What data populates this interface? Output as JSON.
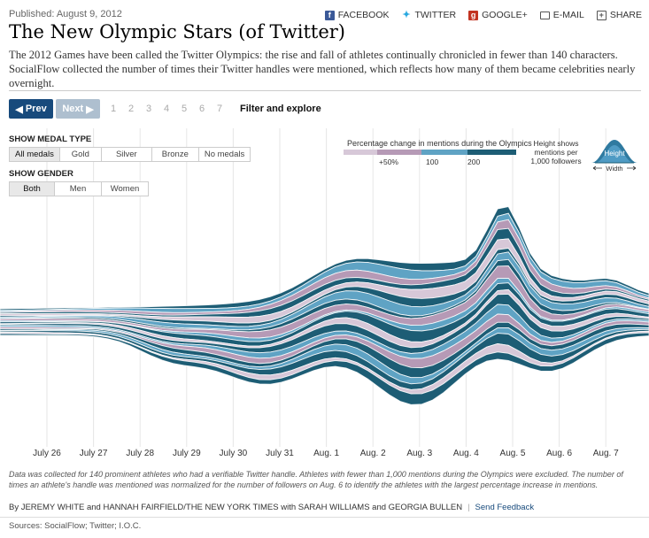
{
  "published": "Published: August 9, 2012",
  "share": [
    "FACEBOOK",
    "TWITTER",
    "GOOGLE+",
    "E-MAIL",
    "SHARE"
  ],
  "title": "The New Olympic Stars (of Twitter)",
  "intro": "The 2012 Games have been called the Twitter Olympics: the rise and fall of athletes continually chronicled in fewer than 140 characters. SocialFlow collected the number of times their Twitter handles were mentioned, which reflects how many of them became celebrities nearly overnight.",
  "nav": {
    "prev": "Prev",
    "next": "Next",
    "pages": [
      "1",
      "2",
      "3",
      "4",
      "5",
      "6",
      "7"
    ],
    "filter": "Filter and explore"
  },
  "medal": {
    "label": "SHOW MEDAL TYPE",
    "options": [
      "All medals",
      "Gold",
      "Silver",
      "Bronze",
      "No medals"
    ],
    "selected": "All medals"
  },
  "gender": {
    "label": "SHOW GENDER",
    "options": [
      "Both",
      "Men",
      "Women"
    ],
    "selected": "Both"
  },
  "legend": {
    "title": "Percentage change in mentions during the Olympics",
    "ticks": [
      "+50%",
      "100",
      "200"
    ],
    "colors": [
      "#d7c8d8",
      "#b69ab6",
      "#5fa3c4",
      "#1d5d75"
    ],
    "height_note": "Height shows mentions per 1,000 followers",
    "glyph_height": "Height",
    "glyph_width": "Width"
  },
  "chart_data": {
    "type": "area",
    "x": [
      "July 26",
      "July 27",
      "July 28",
      "July 29",
      "July 30",
      "July 31",
      "Aug. 1",
      "Aug. 2",
      "Aug. 3",
      "Aug. 4",
      "Aug. 5",
      "Aug. 6",
      "Aug. 7"
    ]
  },
  "footnote": "Data was collected for 140 prominent athletes who had a verifiable Twitter handle. Athletes with fewer than 1,000 mentions during the Olympics were excluded. The number of times an athlete's handle was mentioned was normalized for the number of followers on Aug. 6 to identify the athletes with the largest percentage increase in mentions.",
  "byline": {
    "text": "By JEREMY WHITE and HANNAH FAIRFIELD/THE NEW YORK TIMES with SARAH WILLIAMS and GEORGIA BULLEN",
    "feedback": "Send Feedback"
  },
  "sources": "Sources: SocialFlow; Twitter; I.O.C."
}
